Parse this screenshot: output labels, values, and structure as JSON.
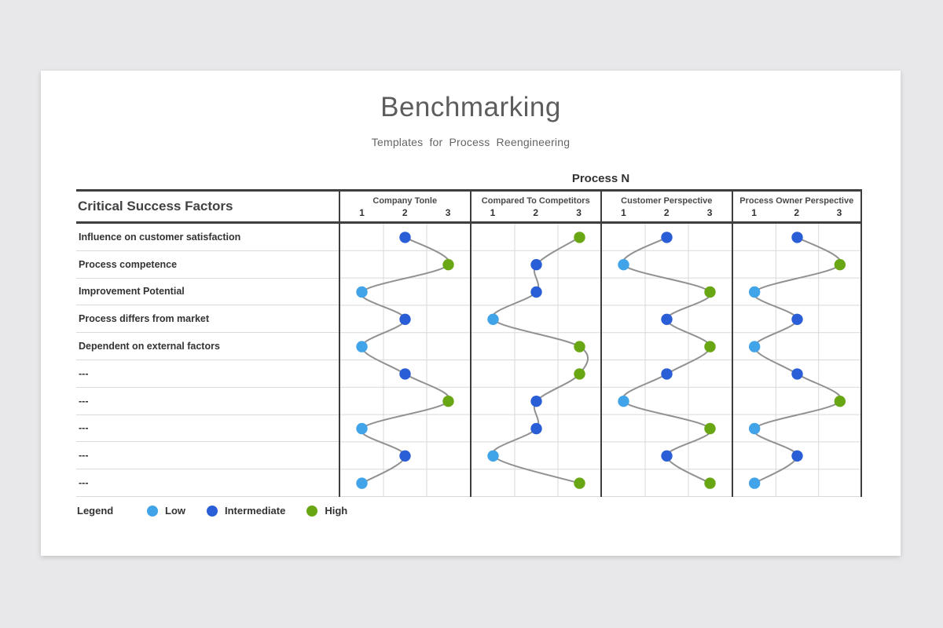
{
  "slide": {
    "title": "Benchmarking",
    "subtitle": "Templates for Process Reengineering"
  },
  "table": {
    "process_header": "Process N",
    "row_header": "Critical Success Factors",
    "tick_labels": [
      "1",
      "2",
      "3"
    ],
    "legend": {
      "label": "Legend",
      "items": [
        {
          "label": "Low",
          "color": "#41a3e8"
        },
        {
          "label": "Intermediate",
          "color": "#2a5ed6"
        },
        {
          "label": "High",
          "color": "#68a713"
        }
      ]
    }
  },
  "chart_data": {
    "type": "line",
    "subtype": "bump-dot-matrix",
    "title": "Process N",
    "x_scale": [
      1,
      2,
      3
    ],
    "rows": [
      "Influence on customer satisfaction",
      "Process competence",
      "Improvement Potential",
      "Process differs from market",
      "Dependent on external factors",
      "---",
      "---",
      "---",
      "---",
      "---"
    ],
    "series": [
      {
        "name": "Company Tonle",
        "values": [
          2,
          3,
          1,
          2,
          1,
          2,
          3,
          1,
          2,
          1
        ]
      },
      {
        "name": "Compared To Competitors",
        "values": [
          3,
          2,
          2,
          1,
          3,
          3,
          2,
          2,
          1,
          3
        ]
      },
      {
        "name": "Customer Perspective",
        "values": [
          2,
          1,
          3,
          2,
          3,
          2,
          1,
          3,
          2,
          3
        ]
      },
      {
        "name": "Process Owner Perspective",
        "values": [
          2,
          3,
          1,
          2,
          1,
          2,
          3,
          1,
          2,
          1
        ]
      }
    ],
    "value_legend": {
      "1": "Low",
      "2": "Intermediate",
      "3": "High"
    },
    "value_colors": {
      "1": "#41a3e8",
      "2": "#2a5ed6",
      "3": "#68a713"
    },
    "curve_color": "#919191",
    "grid_color": "#d9d9d9",
    "legend_position": "bottom-left",
    "grid": true
  }
}
